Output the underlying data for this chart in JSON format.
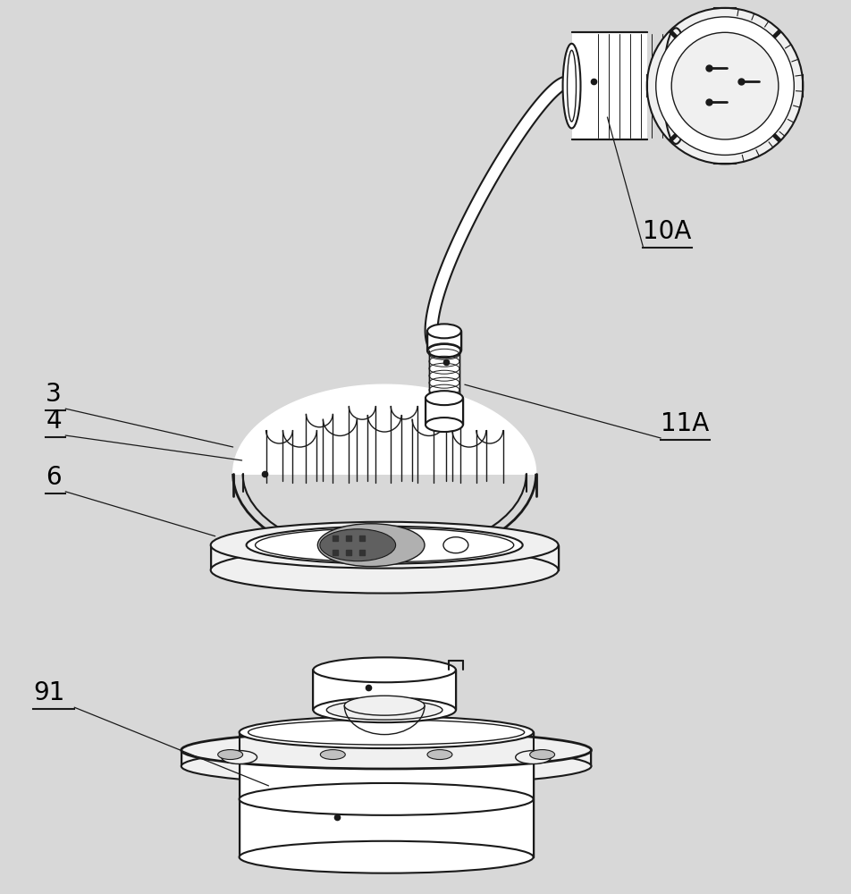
{
  "bg_color": "#d8d8d8",
  "line_color": "#1a1a1a",
  "label_color": "#000000",
  "fig_width": 9.53,
  "fig_height": 10.0,
  "label_fontsize": 20,
  "dot_size": 4.5
}
